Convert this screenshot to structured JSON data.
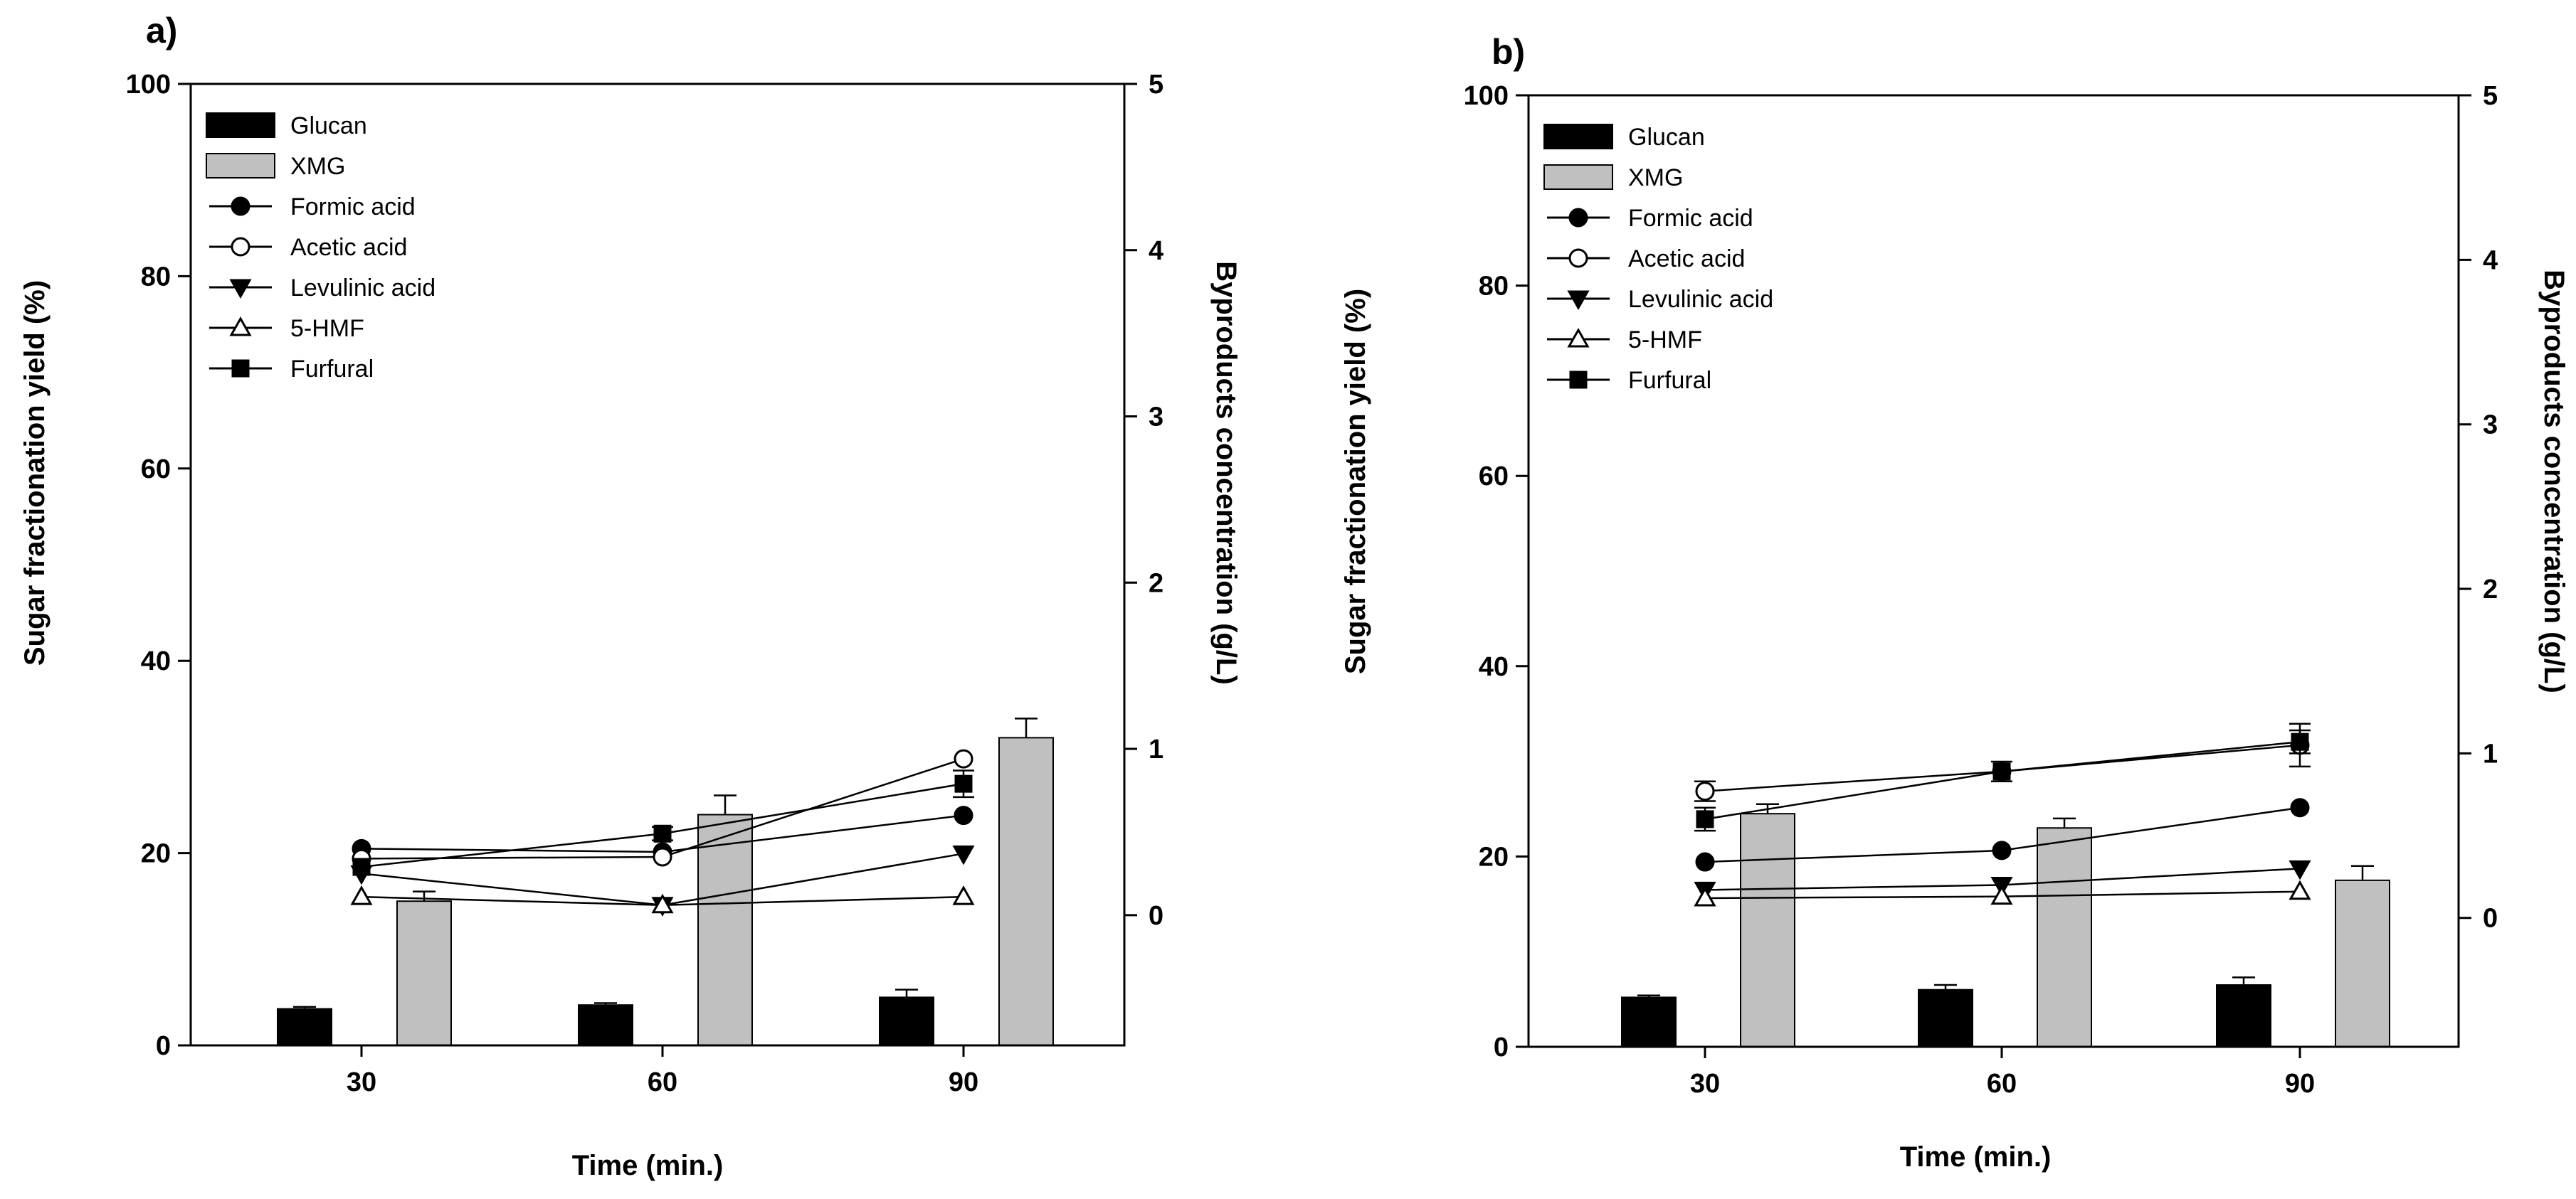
{
  "figure": {
    "panels": [
      "a)",
      "b)"
    ]
  },
  "chart_data": [
    {
      "type": "bar",
      "panel_label": "a)",
      "xlabel": "Time (min.)",
      "ylabel": "Sugar fractionation yield (%)",
      "y2label": "Byproducts concentration (g/L)",
      "categories": [
        "30",
        "60",
        "90"
      ],
      "ylim": [
        0,
        100
      ],
      "yticks": [
        "0",
        "20",
        "40",
        "60",
        "80",
        "100"
      ],
      "y2lim": [
        -0.7836,
        5
      ],
      "y2ticks": [
        "0",
        "1",
        "2",
        "3",
        "4",
        "5"
      ],
      "legend_position": "top-left",
      "legend": [
        "Glucan",
        "XMG",
        "Formic acid",
        "Acetic acid",
        "Levulinic acid",
        "5-HMF",
        "Furfural"
      ],
      "bar_series": [
        {
          "name": "Glucan",
          "values": [
            3.8,
            4.2,
            5.0
          ],
          "errors": [
            0.2,
            0.2,
            0.8
          ],
          "color": "#000000"
        },
        {
          "name": "XMG",
          "values": [
            15.0,
            24.0,
            32.0
          ],
          "errors": [
            1.0,
            2.0,
            2.0
          ],
          "color": "#c0c0c0"
        }
      ],
      "line_series": [
        {
          "name": "Formic acid",
          "marker": "circle",
          "filled": true,
          "values": [
            0.4,
            0.38,
            0.6
          ],
          "errors": [
            0,
            0,
            0
          ]
        },
        {
          "name": "Acetic acid",
          "marker": "circle",
          "filled": false,
          "values": [
            0.34,
            0.35,
            0.94
          ],
          "errors": [
            0,
            0,
            0
          ]
        },
        {
          "name": "Levulinic acid",
          "marker": "triangle-down",
          "filled": true,
          "values": [
            0.25,
            0.06,
            0.37
          ],
          "errors": [
            0,
            0,
            0
          ]
        },
        {
          "name": "5-HMF",
          "marker": "triangle-up",
          "filled": false,
          "values": [
            0.11,
            0.06,
            0.11
          ],
          "errors": [
            0,
            0,
            0
          ]
        },
        {
          "name": "Furfural",
          "marker": "square",
          "filled": true,
          "values": [
            0.29,
            0.49,
            0.79
          ],
          "errors": [
            0,
            0.04,
            0.08
          ]
        }
      ]
    },
    {
      "type": "bar",
      "panel_label": "b)",
      "xlabel": "Time (min.)",
      "ylabel": "Sugar fractionation yield (%)",
      "y2label": "Byproducts concentration (g/L)",
      "categories": [
        "30",
        "60",
        "90"
      ],
      "ylim": [
        0,
        100
      ],
      "yticks": [
        "0",
        "20",
        "40",
        "60",
        "80",
        "100"
      ],
      "y2lim": [
        -0.7836,
        5
      ],
      "y2ticks": [
        "0",
        "1",
        "2",
        "3",
        "4",
        "5"
      ],
      "legend_position": "top-left",
      "legend": [
        "Glucan",
        "XMG",
        "Formic acid",
        "Acetic acid",
        "Levulinic acid",
        "5-HMF",
        "Furfural"
      ],
      "bar_series": [
        {
          "name": "Glucan",
          "values": [
            5.2,
            6.0,
            6.5
          ],
          "errors": [
            0.2,
            0.5,
            0.8
          ],
          "color": "#000000"
        },
        {
          "name": "XMG",
          "values": [
            24.5,
            23.0,
            17.5
          ],
          "errors": [
            1.0,
            1.0,
            1.5
          ],
          "color": "#c0c0c0"
        }
      ],
      "line_series": [
        {
          "name": "Formic acid",
          "marker": "circle",
          "filled": true,
          "values": [
            0.34,
            0.41,
            0.67
          ],
          "errors": [
            0,
            0,
            0
          ]
        },
        {
          "name": "Acetic acid",
          "marker": "circle",
          "filled": false,
          "values": [
            0.77,
            0.89,
            1.05
          ],
          "errors": [
            0.06,
            0,
            0.13
          ]
        },
        {
          "name": "Levulinic acid",
          "marker": "triangle-down",
          "filled": true,
          "values": [
            0.17,
            0.2,
            0.3
          ],
          "errors": [
            0,
            0,
            0
          ]
        },
        {
          "name": "5-HMF",
          "marker": "triangle-up",
          "filled": false,
          "values": [
            0.12,
            0.13,
            0.16
          ],
          "errors": [
            0,
            0,
            0
          ]
        },
        {
          "name": "Furfural",
          "marker": "square",
          "filled": true,
          "values": [
            0.6,
            0.89,
            1.07
          ],
          "errors": [
            0.07,
            0.06,
            0.07
          ]
        }
      ]
    }
  ]
}
